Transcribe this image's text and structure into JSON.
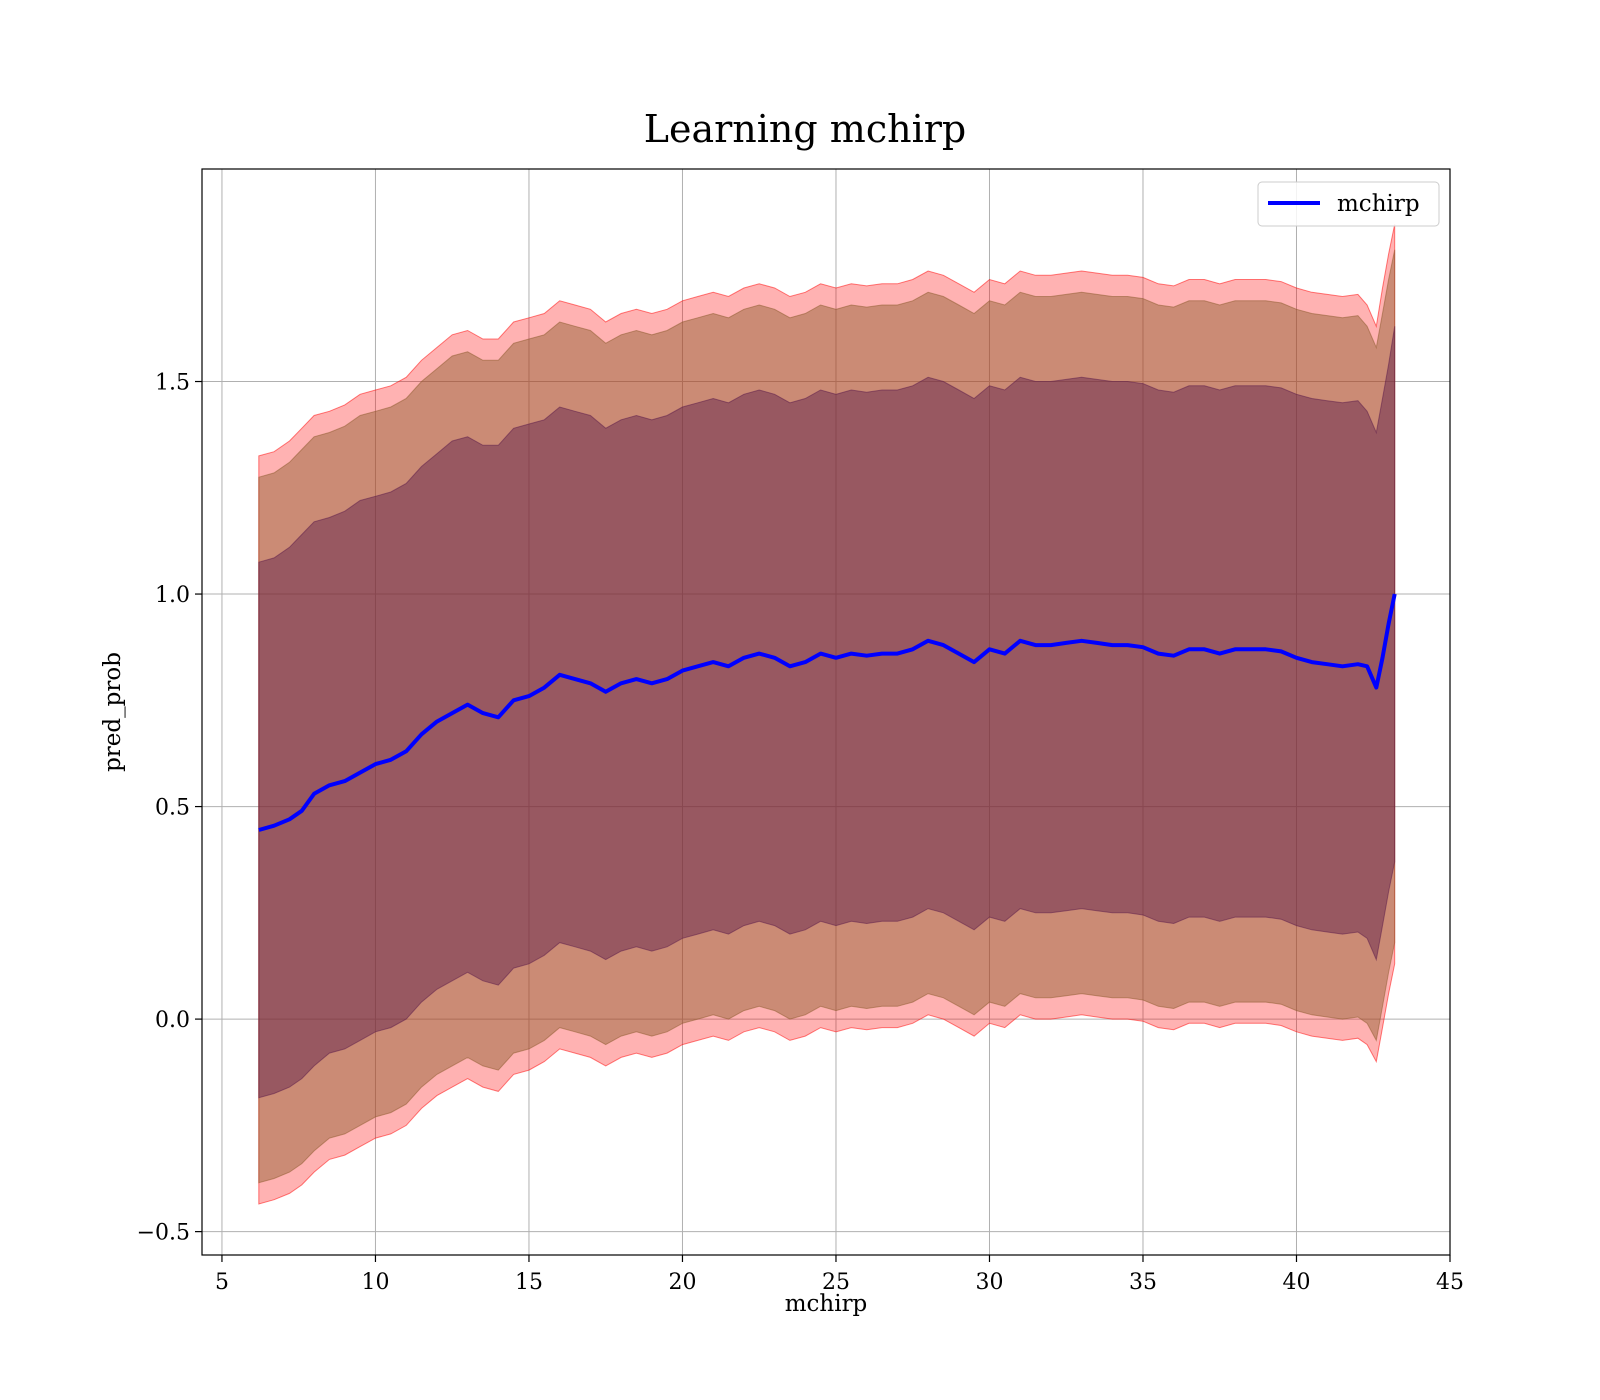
{
  "chart_data": {
    "type": "line",
    "title": "Learning mchirp",
    "xlabel": "mchirp",
    "ylabel": "pred_prob",
    "xlim": [
      4.35,
      45
    ],
    "ylim": [
      -0.555,
      2.0
    ],
    "xticks": [
      5,
      10,
      15,
      20,
      25,
      30,
      35,
      40,
      45
    ],
    "xtick_labels": [
      "5",
      "10",
      "15",
      "20",
      "25",
      "30",
      "35",
      "40",
      "45"
    ],
    "yticks": [
      -0.5,
      0.0,
      0.5,
      1.0,
      1.5
    ],
    "ytick_labels": [
      "−0.5",
      "0.0",
      "0.5",
      "1.0",
      "1.5"
    ],
    "grid": true,
    "legend": {
      "position": "top-right",
      "entries": [
        "mchirp"
      ]
    },
    "colors": {
      "line": "#0000ff",
      "band_outer": "#ff0000",
      "band_middle": "#8b5a2b",
      "band_inner": "#5a1a4a"
    },
    "series": [
      {
        "name": "mchirp",
        "x": [
          6.2,
          6.7,
          7.2,
          7.6,
          8.0,
          8.5,
          9.0,
          9.5,
          10.0,
          10.5,
          11.0,
          11.5,
          12.0,
          12.5,
          13.0,
          13.5,
          14.0,
          14.5,
          15.0,
          15.5,
          16.0,
          16.5,
          17.0,
          17.5,
          18.0,
          18.5,
          19.0,
          19.5,
          20.0,
          20.5,
          21.0,
          21.5,
          22.0,
          22.5,
          23.0,
          23.5,
          24.0,
          24.5,
          25.0,
          25.5,
          26.0,
          26.5,
          27.0,
          27.5,
          28.0,
          28.5,
          29.0,
          29.5,
          30.0,
          30.5,
          31.0,
          31.5,
          32.0,
          32.5,
          33.0,
          33.5,
          34.0,
          34.5,
          35.0,
          35.5,
          36.0,
          36.5,
          37.0,
          37.5,
          38.0,
          38.5,
          39.0,
          39.5,
          40.0,
          40.5,
          41.0,
          41.5,
          42.0,
          42.3,
          42.6,
          42.8,
          43.0,
          43.2
        ],
        "y": [
          0.445,
          0.455,
          0.47,
          0.49,
          0.53,
          0.55,
          0.56,
          0.58,
          0.6,
          0.61,
          0.63,
          0.67,
          0.7,
          0.72,
          0.74,
          0.72,
          0.71,
          0.75,
          0.76,
          0.78,
          0.81,
          0.8,
          0.79,
          0.77,
          0.79,
          0.8,
          0.79,
          0.8,
          0.82,
          0.83,
          0.84,
          0.83,
          0.85,
          0.86,
          0.85,
          0.83,
          0.84,
          0.86,
          0.85,
          0.86,
          0.855,
          0.86,
          0.86,
          0.87,
          0.89,
          0.88,
          0.86,
          0.84,
          0.87,
          0.86,
          0.89,
          0.88,
          0.88,
          0.885,
          0.89,
          0.885,
          0.88,
          0.88,
          0.875,
          0.86,
          0.855,
          0.87,
          0.87,
          0.86,
          0.87,
          0.87,
          0.87,
          0.865,
          0.85,
          0.84,
          0.835,
          0.83,
          0.835,
          0.83,
          0.78,
          0.85,
          0.93,
          1.0
        ]
      }
    ],
    "bands": [
      {
        "name": "outer",
        "upper": [
          1.325,
          1.335,
          1.36,
          1.39,
          1.42,
          1.43,
          1.445,
          1.47,
          1.48,
          1.49,
          1.51,
          1.55,
          1.58,
          1.61,
          1.62,
          1.6,
          1.6,
          1.64,
          1.65,
          1.66,
          1.69,
          1.68,
          1.67,
          1.64,
          1.66,
          1.67,
          1.66,
          1.67,
          1.69,
          1.7,
          1.71,
          1.7,
          1.72,
          1.73,
          1.72,
          1.7,
          1.71,
          1.73,
          1.72,
          1.73,
          1.725,
          1.73,
          1.73,
          1.74,
          1.76,
          1.75,
          1.73,
          1.71,
          1.74,
          1.73,
          1.76,
          1.75,
          1.75,
          1.755,
          1.76,
          1.755,
          1.75,
          1.75,
          1.745,
          1.73,
          1.725,
          1.74,
          1.74,
          1.73,
          1.74,
          1.74,
          1.74,
          1.735,
          1.72,
          1.71,
          1.705,
          1.7,
          1.705,
          1.68,
          1.63,
          1.72,
          1.8,
          1.87
        ],
        "lower": [
          -0.435,
          -0.425,
          -0.41,
          -0.39,
          -0.36,
          -0.33,
          -0.32,
          -0.3,
          -0.28,
          -0.27,
          -0.25,
          -0.21,
          -0.18,
          -0.16,
          -0.14,
          -0.16,
          -0.17,
          -0.13,
          -0.12,
          -0.1,
          -0.07,
          -0.08,
          -0.09,
          -0.11,
          -0.09,
          -0.08,
          -0.09,
          -0.08,
          -0.06,
          -0.05,
          -0.04,
          -0.05,
          -0.03,
          -0.02,
          -0.03,
          -0.05,
          -0.04,
          -0.02,
          -0.03,
          -0.02,
          -0.025,
          -0.02,
          -0.02,
          -0.01,
          0.01,
          0.0,
          -0.02,
          -0.04,
          -0.01,
          -0.02,
          0.01,
          0.0,
          0.0,
          0.005,
          0.01,
          0.005,
          0.0,
          0.0,
          -0.005,
          -0.02,
          -0.025,
          -0.01,
          -0.01,
          -0.02,
          -0.01,
          -0.01,
          -0.01,
          -0.015,
          -0.03,
          -0.04,
          -0.045,
          -0.05,
          -0.045,
          -0.06,
          -0.1,
          -0.02,
          0.06,
          0.13
        ]
      },
      {
        "name": "middle",
        "upper": [
          1.275,
          1.285,
          1.31,
          1.34,
          1.37,
          1.38,
          1.395,
          1.42,
          1.43,
          1.44,
          1.46,
          1.5,
          1.53,
          1.56,
          1.57,
          1.55,
          1.55,
          1.59,
          1.6,
          1.61,
          1.64,
          1.63,
          1.62,
          1.59,
          1.61,
          1.62,
          1.61,
          1.62,
          1.64,
          1.65,
          1.66,
          1.65,
          1.67,
          1.68,
          1.67,
          1.65,
          1.66,
          1.68,
          1.67,
          1.68,
          1.675,
          1.68,
          1.68,
          1.69,
          1.71,
          1.7,
          1.68,
          1.66,
          1.69,
          1.68,
          1.71,
          1.7,
          1.7,
          1.705,
          1.71,
          1.705,
          1.7,
          1.7,
          1.695,
          1.68,
          1.675,
          1.69,
          1.69,
          1.68,
          1.69,
          1.69,
          1.69,
          1.685,
          1.67,
          1.66,
          1.655,
          1.65,
          1.655,
          1.63,
          1.58,
          1.66,
          1.74,
          1.81
        ],
        "lower": [
          -0.385,
          -0.375,
          -0.36,
          -0.34,
          -0.31,
          -0.28,
          -0.27,
          -0.25,
          -0.23,
          -0.22,
          -0.2,
          -0.16,
          -0.13,
          -0.11,
          -0.09,
          -0.11,
          -0.12,
          -0.08,
          -0.07,
          -0.05,
          -0.02,
          -0.03,
          -0.04,
          -0.06,
          -0.04,
          -0.03,
          -0.04,
          -0.03,
          -0.01,
          0.0,
          0.01,
          0.0,
          0.02,
          0.03,
          0.02,
          0.0,
          0.01,
          0.03,
          0.02,
          0.03,
          0.025,
          0.03,
          0.03,
          0.04,
          0.06,
          0.05,
          0.03,
          0.01,
          0.04,
          0.03,
          0.06,
          0.05,
          0.05,
          0.055,
          0.06,
          0.055,
          0.05,
          0.05,
          0.045,
          0.03,
          0.025,
          0.04,
          0.04,
          0.03,
          0.04,
          0.04,
          0.04,
          0.035,
          0.02,
          0.01,
          0.005,
          0.0,
          0.005,
          -0.01,
          -0.05,
          0.03,
          0.11,
          0.18
        ]
      },
      {
        "name": "inner",
        "upper": [
          1.075,
          1.085,
          1.11,
          1.14,
          1.17,
          1.18,
          1.195,
          1.22,
          1.23,
          1.24,
          1.26,
          1.3,
          1.33,
          1.36,
          1.37,
          1.35,
          1.35,
          1.39,
          1.4,
          1.41,
          1.44,
          1.43,
          1.42,
          1.39,
          1.41,
          1.42,
          1.41,
          1.42,
          1.44,
          1.45,
          1.46,
          1.45,
          1.47,
          1.48,
          1.47,
          1.45,
          1.46,
          1.48,
          1.47,
          1.48,
          1.475,
          1.48,
          1.48,
          1.49,
          1.51,
          1.5,
          1.48,
          1.46,
          1.49,
          1.48,
          1.51,
          1.5,
          1.5,
          1.505,
          1.51,
          1.505,
          1.5,
          1.5,
          1.495,
          1.48,
          1.475,
          1.49,
          1.49,
          1.48,
          1.49,
          1.49,
          1.49,
          1.485,
          1.47,
          1.46,
          1.455,
          1.45,
          1.455,
          1.43,
          1.38,
          1.46,
          1.54,
          1.63
        ],
        "lower": [
          -0.185,
          -0.175,
          -0.16,
          -0.14,
          -0.11,
          -0.08,
          -0.07,
          -0.05,
          -0.03,
          -0.02,
          0.0,
          0.04,
          0.07,
          0.09,
          0.11,
          0.09,
          0.08,
          0.12,
          0.13,
          0.15,
          0.18,
          0.17,
          0.16,
          0.14,
          0.16,
          0.17,
          0.16,
          0.17,
          0.19,
          0.2,
          0.21,
          0.2,
          0.22,
          0.23,
          0.22,
          0.2,
          0.21,
          0.23,
          0.22,
          0.23,
          0.225,
          0.23,
          0.23,
          0.24,
          0.26,
          0.25,
          0.23,
          0.21,
          0.24,
          0.23,
          0.26,
          0.25,
          0.25,
          0.255,
          0.26,
          0.255,
          0.25,
          0.25,
          0.245,
          0.23,
          0.225,
          0.24,
          0.24,
          0.23,
          0.24,
          0.24,
          0.24,
          0.235,
          0.22,
          0.21,
          0.205,
          0.2,
          0.205,
          0.19,
          0.14,
          0.22,
          0.3,
          0.37
        ]
      }
    ]
  }
}
